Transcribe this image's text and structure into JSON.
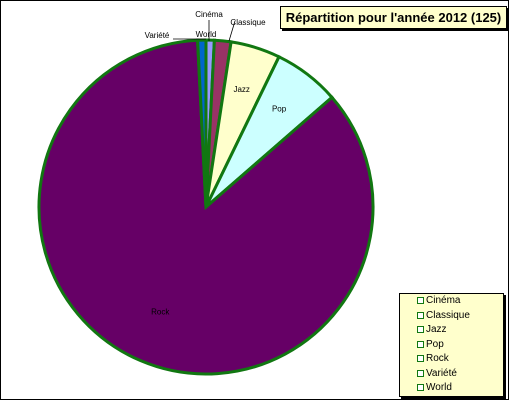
{
  "chart_data": {
    "type": "pie",
    "title": "Répartition pour l'année 2012 (125)",
    "slices": [
      {
        "label": "Cinéma",
        "value": 1,
        "color": "#9999ff"
      },
      {
        "label": "Classique",
        "value": 2,
        "color": "#993366"
      },
      {
        "label": "Jazz",
        "value": 6,
        "color": "#ffffcc"
      },
      {
        "label": "Pop",
        "value": 8,
        "color": "#ccffff"
      },
      {
        "label": "Rock",
        "value": 107,
        "color": "#660066"
      },
      {
        "label": "Variété",
        "value": 0,
        "color": "#ff8080"
      },
      {
        "label": "World",
        "value": 1,
        "color": "#0066cc"
      }
    ],
    "legend": {
      "position": "bottom-right",
      "items": [
        "Cinéma",
        "Classique",
        "Jazz",
        "Pop",
        "Rock",
        "Variété",
        "World"
      ]
    },
    "slice_border_color": "#117711"
  }
}
